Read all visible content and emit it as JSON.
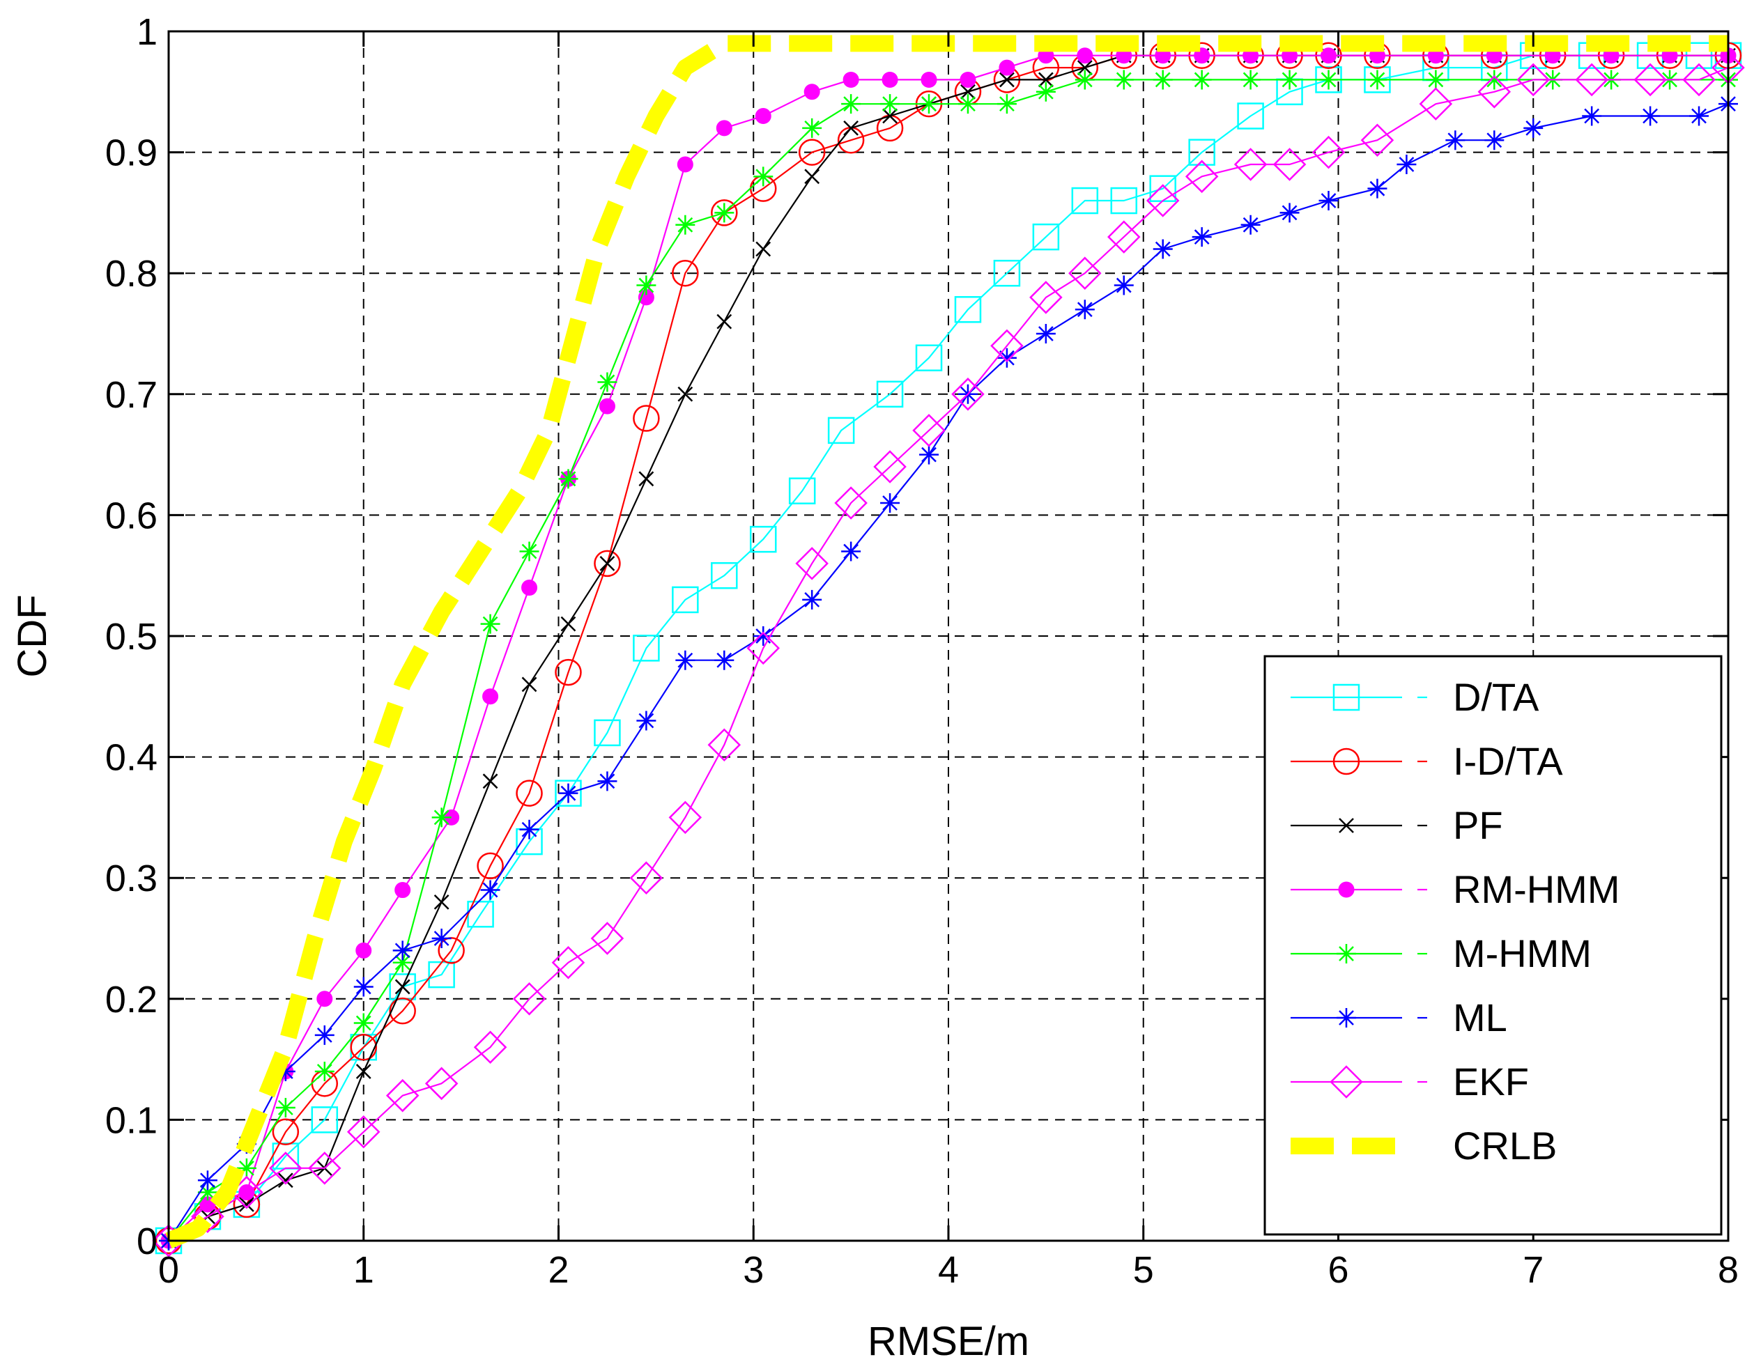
{
  "chart_data": {
    "type": "line",
    "title": "",
    "xlabel": "RMSE/m",
    "ylabel": "CDF",
    "xlim": [
      0,
      8
    ],
    "ylim": [
      0,
      1
    ],
    "grid": true,
    "legend_position": "bottom-right",
    "xticks": [
      "0",
      "1",
      "2",
      "3",
      "4",
      "5",
      "6",
      "7",
      "8"
    ],
    "yticks": [
      "0",
      "0.1",
      "0.2",
      "0.3",
      "0.4",
      "0.5",
      "0.6",
      "0.7",
      "0.8",
      "0.9",
      "1"
    ],
    "series": [
      {
        "name": "D/TA",
        "color": "#00ffff",
        "marker": "square",
        "style": "dash-marker",
        "x": [
          0,
          0.2,
          0.4,
          0.6,
          0.8,
          1.0,
          1.2,
          1.4,
          1.6,
          1.85,
          2.05,
          2.25,
          2.45,
          2.65,
          2.85,
          3.05,
          3.25,
          3.45,
          3.7,
          3.9,
          4.1,
          4.3,
          4.5,
          4.7,
          4.9,
          5.1,
          5.3,
          5.55,
          5.75,
          5.95,
          6.2,
          6.5,
          6.8,
          7.0,
          7.3,
          7.6,
          7.85,
          8.0
        ],
        "y": [
          0,
          0.02,
          0.03,
          0.07,
          0.1,
          0.16,
          0.21,
          0.22,
          0.27,
          0.33,
          0.37,
          0.42,
          0.49,
          0.53,
          0.55,
          0.58,
          0.62,
          0.67,
          0.7,
          0.73,
          0.77,
          0.8,
          0.83,
          0.86,
          0.86,
          0.87,
          0.9,
          0.93,
          0.95,
          0.96,
          0.96,
          0.97,
          0.97,
          0.98,
          0.98,
          0.98,
          0.98,
          0.98
        ]
      },
      {
        "name": "I-D/TA",
        "color": "#ff0000",
        "marker": "circle",
        "style": "dash-marker",
        "x": [
          0,
          0.2,
          0.4,
          0.6,
          0.8,
          1.0,
          1.2,
          1.45,
          1.65,
          1.85,
          2.05,
          2.25,
          2.45,
          2.65,
          2.85,
          3.05,
          3.3,
          3.5,
          3.7,
          3.9,
          4.1,
          4.3,
          4.5,
          4.7,
          4.9,
          5.1,
          5.3,
          5.55,
          5.75,
          5.95,
          6.2,
          6.5,
          6.8,
          7.1,
          7.4,
          7.7,
          8.0
        ],
        "y": [
          0,
          0.02,
          0.03,
          0.09,
          0.13,
          0.16,
          0.19,
          0.24,
          0.31,
          0.37,
          0.47,
          0.56,
          0.68,
          0.8,
          0.85,
          0.87,
          0.9,
          0.91,
          0.92,
          0.94,
          0.95,
          0.96,
          0.97,
          0.97,
          0.98,
          0.98,
          0.98,
          0.98,
          0.98,
          0.98,
          0.98,
          0.98,
          0.98,
          0.98,
          0.98,
          0.98,
          0.98
        ]
      },
      {
        "name": "PF",
        "color": "#000000",
        "marker": "x",
        "style": "dash-marker",
        "x": [
          0,
          0.2,
          0.4,
          0.6,
          0.8,
          1.0,
          1.2,
          1.4,
          1.65,
          1.85,
          2.05,
          2.25,
          2.45,
          2.65,
          2.85,
          3.05,
          3.3,
          3.5,
          3.7,
          3.9,
          4.1,
          4.3,
          4.5,
          4.7,
          4.9,
          5.1,
          5.3,
          5.55,
          5.75,
          5.95,
          6.2,
          6.5,
          6.8,
          7.1,
          7.4,
          7.7,
          8.0
        ],
        "y": [
          0,
          0.02,
          0.03,
          0.05,
          0.06,
          0.14,
          0.21,
          0.28,
          0.38,
          0.46,
          0.51,
          0.56,
          0.63,
          0.7,
          0.76,
          0.82,
          0.88,
          0.92,
          0.93,
          0.94,
          0.95,
          0.96,
          0.96,
          0.97,
          0.98,
          0.98,
          0.98,
          0.98,
          0.98,
          0.98,
          0.98,
          0.98,
          0.98,
          0.98,
          0.98,
          0.98,
          0.98
        ]
      },
      {
        "name": "RM-HMM",
        "color": "#ff00ff",
        "marker": "dot",
        "style": "dash-marker",
        "x": [
          0,
          0.2,
          0.4,
          0.6,
          0.8,
          1.0,
          1.2,
          1.45,
          1.65,
          1.85,
          2.05,
          2.25,
          2.45,
          2.65,
          2.85,
          3.05,
          3.3,
          3.5,
          3.7,
          3.9,
          4.1,
          4.3,
          4.5,
          4.7,
          4.9,
          5.1,
          5.3,
          5.55,
          5.75,
          5.95,
          6.2,
          6.5,
          6.8,
          7.1,
          7.4,
          7.7,
          8.0
        ],
        "y": [
          0,
          0.03,
          0.04,
          0.14,
          0.2,
          0.24,
          0.29,
          0.35,
          0.45,
          0.54,
          0.63,
          0.69,
          0.78,
          0.89,
          0.92,
          0.93,
          0.95,
          0.96,
          0.96,
          0.96,
          0.96,
          0.97,
          0.98,
          0.98,
          0.98,
          0.98,
          0.98,
          0.98,
          0.98,
          0.98,
          0.98,
          0.98,
          0.98,
          0.98,
          0.98,
          0.98,
          0.98
        ]
      },
      {
        "name": "M-HMM",
        "color": "#00ff00",
        "marker": "star",
        "style": "dash-marker",
        "x": [
          0,
          0.2,
          0.4,
          0.6,
          0.8,
          1.0,
          1.2,
          1.4,
          1.65,
          1.85,
          2.05,
          2.25,
          2.45,
          2.65,
          2.85,
          3.05,
          3.3,
          3.5,
          3.7,
          3.9,
          4.1,
          4.3,
          4.5,
          4.7,
          4.9,
          5.1,
          5.3,
          5.55,
          5.75,
          5.95,
          6.2,
          6.5,
          6.8,
          7.1,
          7.4,
          7.7,
          8.0
        ],
        "y": [
          0,
          0.04,
          0.06,
          0.11,
          0.14,
          0.18,
          0.23,
          0.35,
          0.51,
          0.57,
          0.63,
          0.71,
          0.79,
          0.84,
          0.85,
          0.88,
          0.92,
          0.94,
          0.94,
          0.94,
          0.94,
          0.94,
          0.95,
          0.96,
          0.96,
          0.96,
          0.96,
          0.96,
          0.96,
          0.96,
          0.96,
          0.96,
          0.96,
          0.96,
          0.96,
          0.96,
          0.96
        ]
      },
      {
        "name": "ML",
        "color": "#0000ff",
        "marker": "asterisk",
        "style": "dash-marker",
        "x": [
          0,
          0.2,
          0.4,
          0.6,
          0.8,
          1.0,
          1.2,
          1.4,
          1.65,
          1.85,
          2.05,
          2.25,
          2.45,
          2.65,
          2.85,
          3.05,
          3.3,
          3.5,
          3.7,
          3.9,
          4.1,
          4.3,
          4.5,
          4.7,
          4.9,
          5.1,
          5.3,
          5.55,
          5.75,
          5.95,
          6.2,
          6.35,
          6.6,
          6.8,
          7.0,
          7.3,
          7.6,
          7.85,
          8.0
        ],
        "y": [
          0,
          0.05,
          0.08,
          0.14,
          0.17,
          0.21,
          0.24,
          0.25,
          0.29,
          0.34,
          0.37,
          0.38,
          0.43,
          0.48,
          0.48,
          0.5,
          0.53,
          0.57,
          0.61,
          0.65,
          0.7,
          0.73,
          0.75,
          0.77,
          0.79,
          0.82,
          0.83,
          0.84,
          0.85,
          0.86,
          0.87,
          0.89,
          0.91,
          0.91,
          0.92,
          0.93,
          0.93,
          0.93,
          0.94
        ]
      },
      {
        "name": "EKF",
        "color": "#ff00ff",
        "marker": "diamond",
        "style": "dash-marker",
        "x": [
          0,
          0.2,
          0.4,
          0.6,
          0.8,
          1.0,
          1.2,
          1.4,
          1.65,
          1.85,
          2.05,
          2.25,
          2.45,
          2.65,
          2.85,
          3.05,
          3.3,
          3.5,
          3.7,
          3.9,
          4.1,
          4.3,
          4.5,
          4.7,
          4.9,
          5.1,
          5.3,
          5.55,
          5.75,
          5.95,
          6.2,
          6.5,
          6.8,
          7.0,
          7.3,
          7.6,
          7.85,
          8.0
        ],
        "y": [
          0,
          0.02,
          0.04,
          0.06,
          0.06,
          0.09,
          0.12,
          0.13,
          0.16,
          0.2,
          0.23,
          0.25,
          0.3,
          0.35,
          0.41,
          0.49,
          0.56,
          0.61,
          0.64,
          0.67,
          0.7,
          0.74,
          0.78,
          0.8,
          0.83,
          0.86,
          0.88,
          0.89,
          0.89,
          0.9,
          0.91,
          0.94,
          0.95,
          0.96,
          0.96,
          0.96,
          0.96,
          0.97
        ]
      },
      {
        "name": "CRLB",
        "color": "#ffff00",
        "marker": "none",
        "style": "thick-dash",
        "x": [
          0,
          0.15,
          0.3,
          0.45,
          0.6,
          0.75,
          0.9,
          1.05,
          1.2,
          1.4,
          1.6,
          1.8,
          1.95,
          2.05,
          2.2,
          2.35,
          2.5,
          2.65,
          2.85,
          3.0,
          3.5,
          4.0,
          5.0,
          6.0,
          7.0,
          8.0
        ],
        "y": [
          0,
          0.01,
          0.04,
          0.1,
          0.16,
          0.25,
          0.33,
          0.39,
          0.46,
          0.52,
          0.57,
          0.62,
          0.67,
          0.73,
          0.82,
          0.88,
          0.93,
          0.97,
          0.99,
          0.99,
          0.99,
          0.99,
          0.99,
          0.99,
          0.99,
          0.99
        ]
      }
    ]
  }
}
